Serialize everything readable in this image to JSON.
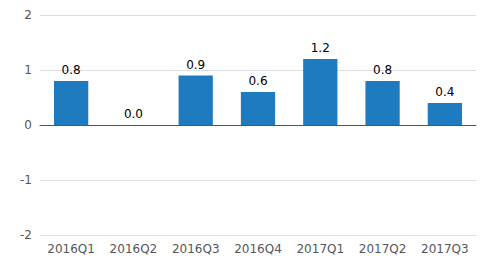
{
  "chart_data": {
    "type": "bar",
    "categories": [
      "2016Q1",
      "2016Q2",
      "2016Q3",
      "2016Q4",
      "2017Q1",
      "2017Q2",
      "2017Q3"
    ],
    "values": [
      0.8,
      0.0,
      0.9,
      0.6,
      1.2,
      0.8,
      0.4
    ],
    "value_labels": [
      "0.8",
      "0.0",
      "0.9",
      "0.6",
      "1.2",
      "0.8",
      "0.4"
    ],
    "data_labels": true,
    "color": "#1f7bbf",
    "ylim": [
      -2,
      2
    ],
    "yticks": [
      -2,
      -1,
      0,
      1,
      2
    ],
    "grid": true
  }
}
